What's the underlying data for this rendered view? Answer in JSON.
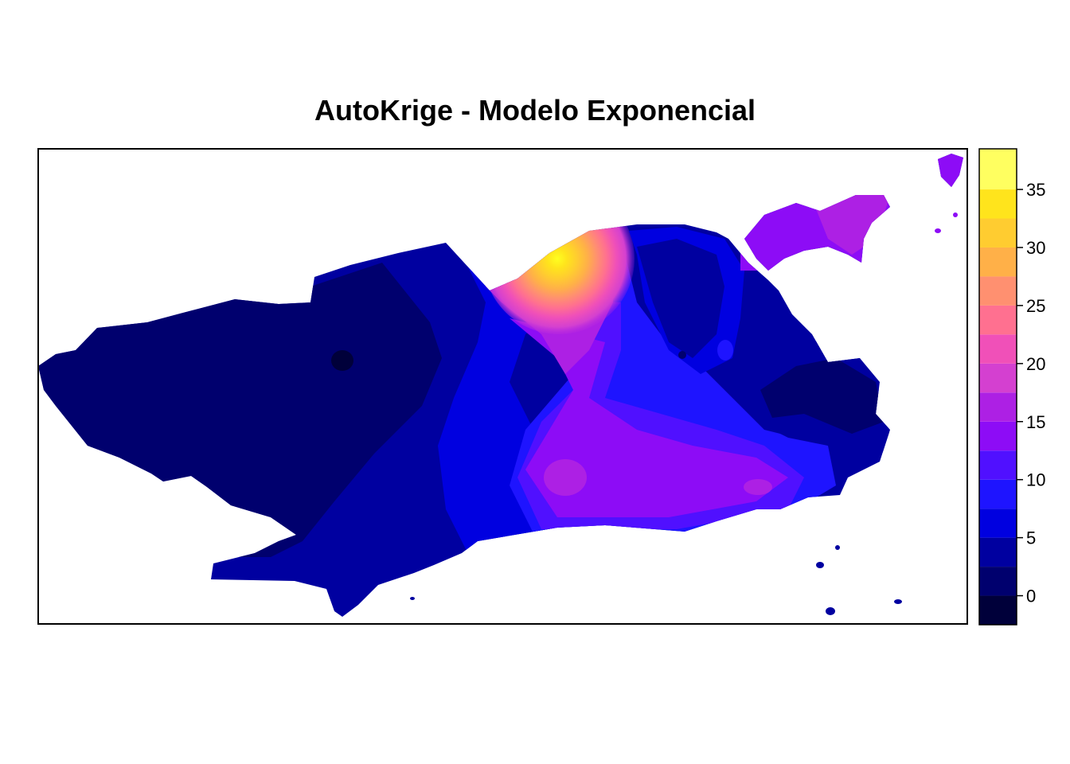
{
  "title": "AutoKrige - Modelo Exponencial",
  "chart_data": {
    "type": "heatmap",
    "title": "AutoKrige - Modelo Exponencial",
    "colorbar": {
      "range": [
        -2.5,
        38.5
      ],
      "breaks": [
        -2.5,
        0,
        2.5,
        5,
        7.5,
        10,
        12.5,
        15,
        17.5,
        20,
        22.5,
        25,
        27.5,
        30,
        32.5,
        35,
        38.5
      ],
      "ticks": [
        0,
        5,
        10,
        15,
        20,
        25,
        30,
        35
      ],
      "tick_labels": [
        "0",
        "5",
        "10",
        "15",
        "20",
        "25",
        "30",
        "35"
      ],
      "colors": [
        "#00003a",
        "#00006e",
        "#0000a0",
        "#0000e0",
        "#1e14ff",
        "#5010ff",
        "#8d0cf6",
        "#ad20e4",
        "#d440d0",
        "#f050b8",
        "#ff7090",
        "#ff9070",
        "#ffb048",
        "#ffcc30",
        "#ffe41c",
        "#ffff60"
      ]
    },
    "features": [
      {
        "type": "hot-spot",
        "value": 37
      },
      {
        "type": "low-spot",
        "value": -1
      },
      {
        "type": "local-max",
        "value": 16
      },
      {
        "type": "local-max",
        "value": 14
      }
    ]
  }
}
